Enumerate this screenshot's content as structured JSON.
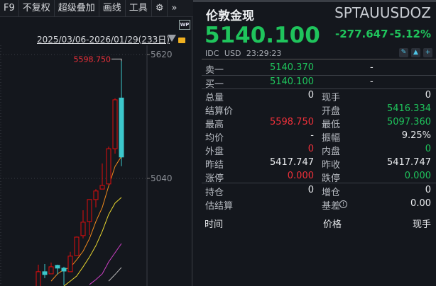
{
  "toolbar": {
    "items": [
      "F9",
      "不复权",
      "超级叠加",
      "画线",
      "工具"
    ],
    "settings_icon": "gear-icon",
    "more_icon": "double-chevron-right-icon"
  },
  "chart_header": {
    "date_range": "2025/03/06-2026/01/29(233日)",
    "wp_icon": "wp-monitor-icon",
    "lock_icon": "unlock-icon"
  },
  "chart_data": {
    "type": "candlestick",
    "y_ticks": [
      "5620",
      "5040"
    ],
    "high_marker": "5598.750",
    "colors": {
      "up": "#e00d0d",
      "down": "#3cc8cc"
    },
    "candles": [
      {
        "o": 4530,
        "c": 4603,
        "h": 4636,
        "l": 4520
      },
      {
        "o": 4603,
        "c": 4590,
        "h": 4639,
        "l": 4573
      },
      {
        "o": 4593,
        "c": 4626,
        "h": 4646,
        "l": 4593
      },
      {
        "o": 4633,
        "c": 4620,
        "h": 4636,
        "l": 4590
      },
      {
        "o": 4620,
        "c": 4606,
        "h": 4626,
        "l": 4540
      },
      {
        "o": 4603,
        "c": 4676,
        "h": 4696,
        "l": 4603
      },
      {
        "o": 4679,
        "c": 4765,
        "h": 4768,
        "l": 4679
      },
      {
        "o": 4772,
        "c": 4835,
        "h": 4891,
        "l": 4759
      },
      {
        "o": 4838,
        "c": 4941,
        "h": 4941,
        "l": 4775
      },
      {
        "o": 4941,
        "c": 4981,
        "h": 4990,
        "l": 4904
      },
      {
        "o": 4990,
        "c": 5007,
        "h": 5110,
        "l": 4990
      },
      {
        "o": 5014,
        "c": 5179,
        "h": 5189,
        "l": 5014
      },
      {
        "o": 5179,
        "c": 5408,
        "h": 5415,
        "l": 5156
      },
      {
        "o": 5416.334,
        "c": 5140.1,
        "h": 5598.75,
        "l": 5097.36
      }
    ],
    "moving_averages": [
      {
        "color": "#f08a1c",
        "values": [
          null,
          null,
          4559,
          4593,
          4613,
          4623,
          4659,
          4699,
          4758,
          4838,
          4904,
          5004,
          5096,
          5143
        ]
      },
      {
        "color": "#e8d630",
        "values": [
          null,
          null,
          null,
          null,
          4536,
          4559,
          4583,
          4626,
          4672,
          4725,
          4792,
          4871,
          4924,
          4951
        ]
      },
      {
        "color": "#d040c8",
        "values": [
          null,
          null,
          null,
          null,
          null,
          null,
          null,
          null,
          4543,
          4566,
          4593,
          4649,
          4692,
          4735
        ]
      },
      {
        "color": "#b8b8b8",
        "values": [
          null,
          null,
          null,
          null,
          null,
          null,
          null,
          null,
          null,
          null,
          null,
          4559,
          4590,
          4623
        ]
      }
    ]
  },
  "quote": {
    "name": "伦敦金现",
    "code": "SPTAUUSDOZ",
    "price": "5140.100",
    "change": "-277.647",
    "change_pct": "-5.12%",
    "exchange": "IDC",
    "currency": "USD",
    "time": "23:29:23",
    "icons": [
      "pencil-icon",
      "bell-icon",
      "plus-icon"
    ],
    "ask": {
      "label": "卖一",
      "price": "5140.370",
      "volume": "-"
    },
    "bid": {
      "label": "买一",
      "price": "5140.100",
      "volume": "-"
    },
    "rows": [
      {
        "l1": "总量",
        "v1": "0",
        "c1": "w",
        "l2": "现手",
        "v2": "0",
        "c2": "w"
      },
      {
        "l1": "结算价",
        "v1": "",
        "c1": "w",
        "l2": "开盘",
        "v2": "5416.334",
        "c2": "g"
      },
      {
        "l1": "最高",
        "v1": "5598.750",
        "c1": "r",
        "l2": "最低",
        "v2": "5097.360",
        "c2": "g"
      },
      {
        "l1": "均价",
        "v1": "-",
        "c1": "w",
        "l2": "振幅",
        "v2": "9.25%",
        "c2": "w"
      },
      {
        "l1": "外盘",
        "v1": "0",
        "c1": "r",
        "l2": "内盘",
        "v2": "0",
        "c2": "g"
      },
      {
        "l1": "昨结",
        "v1": "5417.747",
        "c1": "w",
        "l2": "昨收",
        "v2": "5417.747",
        "c2": "w"
      },
      {
        "l1": "涨停",
        "v1": "0.000",
        "c1": "r",
        "l2": "跌停",
        "v2": "0.000",
        "c2": "g"
      }
    ],
    "rows2": [
      {
        "l1": "持仓",
        "v1": "0",
        "c1": "w",
        "l2": "增仓",
        "v2": "0",
        "c2": "w"
      },
      {
        "l1": "估结算",
        "v1": "",
        "c1": "w",
        "l2": "基差",
        "v2": "0.00",
        "c2": "w"
      }
    ],
    "trades_header": {
      "time": "时间",
      "price": "价格",
      "volume": "现手"
    }
  }
}
